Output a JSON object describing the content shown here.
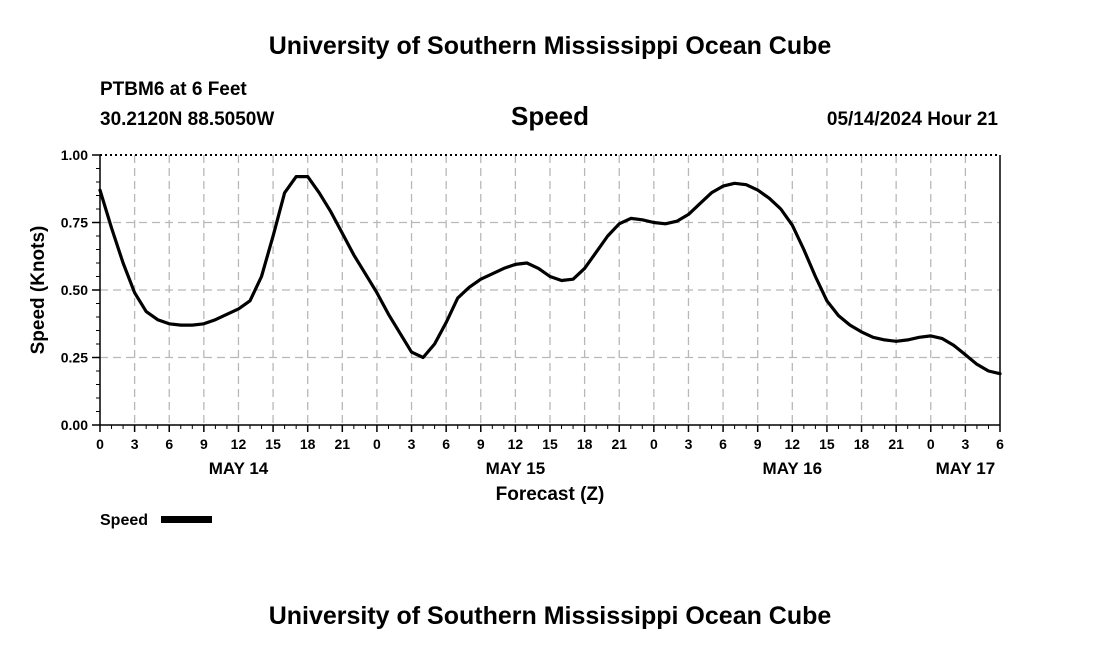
{
  "header": {
    "title": "University of Southern Mississippi Ocean Cube",
    "station": "PTBM6 at 6 Feet",
    "coords": "30.2120N  88.5050W",
    "timestamp": "05/14/2024 Hour 21"
  },
  "footer": {
    "title": "University of Southern Mississippi Ocean Cube"
  },
  "chart_data": {
    "type": "line",
    "title": "Speed",
    "xlabel": "Forecast (Z)",
    "ylabel": "Speed (Knots)",
    "ylim": [
      0,
      1
    ],
    "xlim": [
      0,
      78
    ],
    "grid": true,
    "y_ticks": [
      0,
      0.25,
      0.5,
      0.75,
      1.0
    ],
    "y_tick_labels": [
      "0.00",
      "0.25",
      "0.50",
      "0.75",
      "1.00"
    ],
    "x_tick_hours": [
      0,
      3,
      6,
      9,
      12,
      15,
      18,
      21,
      24,
      27,
      30,
      33,
      36,
      39,
      42,
      45,
      48,
      51,
      54,
      57,
      60,
      63,
      66,
      69,
      72,
      75,
      78
    ],
    "x_tick_labels": [
      "0",
      "3",
      "6",
      "9",
      "12",
      "15",
      "18",
      "21",
      "0",
      "3",
      "6",
      "9",
      "12",
      "15",
      "18",
      "21",
      "0",
      "3",
      "6",
      "9",
      "12",
      "15",
      "18",
      "21",
      "0",
      "3",
      "6"
    ],
    "date_labels": [
      {
        "label": "MAY 14",
        "hour": 12
      },
      {
        "label": "MAY 15",
        "hour": 36
      },
      {
        "label": "MAY 16",
        "hour": 60
      },
      {
        "label": "MAY 17",
        "hour": 75
      }
    ],
    "legend": {
      "label": "Speed",
      "position": "bottom-left"
    },
    "series": [
      {
        "name": "Speed",
        "x": [
          0,
          1,
          2,
          3,
          4,
          5,
          6,
          7,
          8,
          9,
          10,
          11,
          12,
          13,
          14,
          15,
          16,
          17,
          18,
          19,
          20,
          21,
          22,
          23,
          24,
          25,
          26,
          27,
          28,
          29,
          30,
          31,
          32,
          33,
          34,
          35,
          36,
          37,
          38,
          39,
          40,
          41,
          42,
          43,
          44,
          45,
          46,
          47,
          48,
          49,
          50,
          51,
          52,
          53,
          54,
          55,
          56,
          57,
          58,
          59,
          60,
          61,
          62,
          63,
          64,
          65,
          66,
          67,
          68,
          69,
          70,
          71,
          72,
          73,
          74,
          75,
          76,
          77,
          78
        ],
        "values": [
          0.87,
          0.73,
          0.6,
          0.49,
          0.42,
          0.39,
          0.375,
          0.37,
          0.37,
          0.375,
          0.39,
          0.41,
          0.43,
          0.46,
          0.55,
          0.7,
          0.86,
          0.92,
          0.92,
          0.86,
          0.79,
          0.71,
          0.63,
          0.56,
          0.49,
          0.41,
          0.34,
          0.27,
          0.25,
          0.3,
          0.38,
          0.47,
          0.51,
          0.54,
          0.56,
          0.58,
          0.595,
          0.6,
          0.58,
          0.55,
          0.535,
          0.54,
          0.58,
          0.64,
          0.7,
          0.745,
          0.765,
          0.76,
          0.75,
          0.745,
          0.755,
          0.78,
          0.82,
          0.86,
          0.885,
          0.895,
          0.89,
          0.87,
          0.84,
          0.8,
          0.74,
          0.65,
          0.55,
          0.46,
          0.405,
          0.37,
          0.345,
          0.325,
          0.315,
          0.31,
          0.315,
          0.325,
          0.33,
          0.32,
          0.295,
          0.26,
          0.225,
          0.2,
          0.19
        ]
      }
    ]
  }
}
